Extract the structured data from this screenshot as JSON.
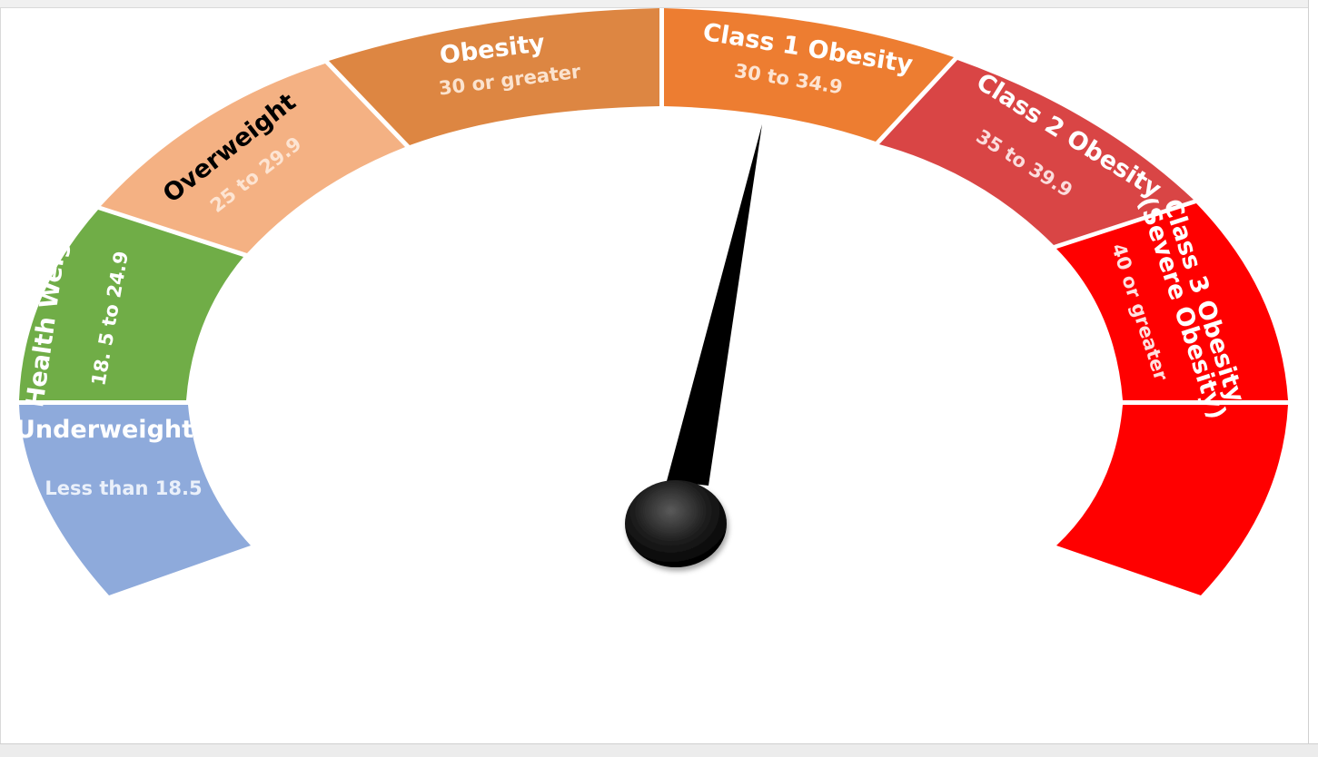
{
  "chart_data": {
    "type": "gauge",
    "segments": [
      {
        "name": "Underweight",
        "range_label": "Less than 18.5",
        "color": "#8eaadb",
        "title_color": "#ffffff",
        "range_color": "#eaf0fa"
      },
      {
        "name": "Health Weight",
        "range_label": "18. 5 to 24.9",
        "color": "#70ad47",
        "title_color": "#ffffff",
        "range_color": "#ffffff"
      },
      {
        "name": "Overweight",
        "range_label": "25 to 29.9",
        "color": "#f4b183",
        "title_color": "#000000",
        "range_color": "#fde4d2"
      },
      {
        "name": "Obesity",
        "range_label": "30 or greater",
        "color": "#dd8642",
        "title_color": "#ffffff",
        "range_color": "#fbe3cf"
      },
      {
        "name": "Class 1 Obesity",
        "range_label": "30 to 34.9",
        "color": "#ed7d31",
        "title_color": "#ffffff",
        "range_color": "#fde4d2"
      },
      {
        "name": "Class 2 Obesity",
        "range_label": "35 to 39.9",
        "color": "#d94545",
        "title_color": "#ffffff",
        "range_color": "#fbdcdc"
      },
      {
        "name": "Class 3 Obesity",
        "subtitle": "(Severe Obesity)",
        "range_label": "40 or greater",
        "color": "#ff0000",
        "title_color": "#ffffff",
        "range_color": "#ffe0e0"
      }
    ],
    "needle_segment": "Class 1 Obesity",
    "needle_color": "#000000",
    "hub_color": "#1a1a1a"
  }
}
